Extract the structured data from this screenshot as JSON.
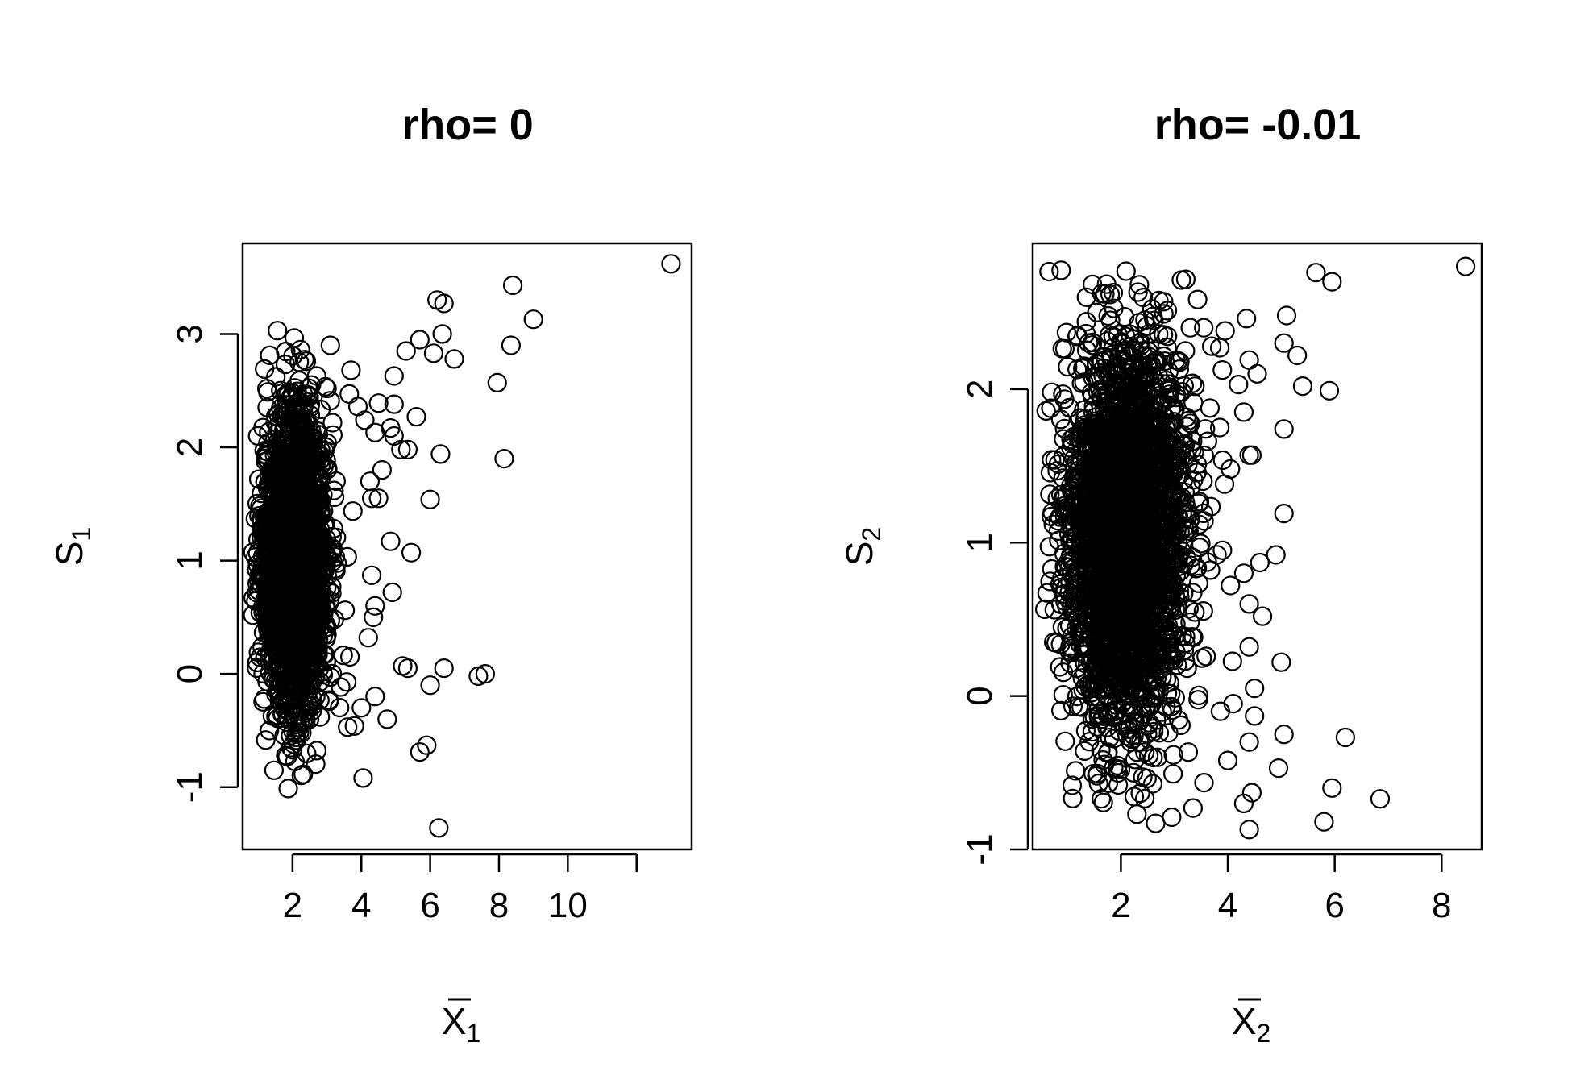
{
  "chart_data": [
    {
      "type": "scatter",
      "title": "rho= 0",
      "xlabel": "X̄1",
      "ylabel": "S1",
      "xlabel_base": "X",
      "xlabel_sub": "1",
      "ylabel_base": "S",
      "ylabel_sub": "1",
      "xlim": [
        0.55,
        13.6
      ],
      "ylim": [
        -1.55,
        3.8
      ],
      "xticks": [
        2,
        4,
        6,
        8,
        10,
        12
      ],
      "xtick_labels": [
        "2",
        "4",
        "6",
        "8",
        "10",
        ""
      ],
      "yticks": [
        -1,
        0,
        1,
        2,
        3
      ],
      "ytick_labels": [
        "-1",
        "0",
        "1",
        "2",
        "3"
      ],
      "grid": false,
      "bulk": {
        "description": "dense elliptical cloud",
        "x_center": 2.05,
        "x_spread": 0.45,
        "y_center": 1.0,
        "y_spread": 0.62,
        "count": 2600
      },
      "points": [
        {
          "x": 13.0,
          "y": 3.62
        },
        {
          "x": 8.4,
          "y": 3.43
        },
        {
          "x": 6.2,
          "y": 3.3
        },
        {
          "x": 6.4,
          "y": 3.27
        },
        {
          "x": 9.0,
          "y": 3.13
        },
        {
          "x": 6.35,
          "y": 3.0
        },
        {
          "x": 5.7,
          "y": 2.95
        },
        {
          "x": 8.35,
          "y": 2.9
        },
        {
          "x": 3.1,
          "y": 2.9
        },
        {
          "x": 5.3,
          "y": 2.85
        },
        {
          "x": 6.1,
          "y": 2.83
        },
        {
          "x": 6.7,
          "y": 2.78
        },
        {
          "x": 2.4,
          "y": 2.76
        },
        {
          "x": 3.7,
          "y": 2.68
        },
        {
          "x": 2.7,
          "y": 2.63
        },
        {
          "x": 4.95,
          "y": 2.63
        },
        {
          "x": 7.95,
          "y": 2.57
        },
        {
          "x": 2.55,
          "y": 2.55
        },
        {
          "x": 3.0,
          "y": 2.52
        },
        {
          "x": 3.65,
          "y": 2.47
        },
        {
          "x": 4.5,
          "y": 2.39
        },
        {
          "x": 4.95,
          "y": 2.38
        },
        {
          "x": 3.9,
          "y": 2.36
        },
        {
          "x": 5.6,
          "y": 2.27
        },
        {
          "x": 4.1,
          "y": 2.24
        },
        {
          "x": 4.85,
          "y": 2.17
        },
        {
          "x": 4.4,
          "y": 2.13
        },
        {
          "x": 4.95,
          "y": 2.1
        },
        {
          "x": 5.15,
          "y": 1.98
        },
        {
          "x": 5.35,
          "y": 1.98
        },
        {
          "x": 6.3,
          "y": 1.94
        },
        {
          "x": 8.15,
          "y": 1.9
        },
        {
          "x": 4.6,
          "y": 1.8
        },
        {
          "x": 4.25,
          "y": 1.7
        },
        {
          "x": 4.3,
          "y": 1.55
        },
        {
          "x": 6.0,
          "y": 1.54
        },
        {
          "x": 4.5,
          "y": 1.55
        },
        {
          "x": 4.85,
          "y": 1.17
        },
        {
          "x": 5.45,
          "y": 1.07
        },
        {
          "x": 4.3,
          "y": 0.87
        },
        {
          "x": 4.9,
          "y": 0.72
        },
        {
          "x": 4.4,
          "y": 0.6
        },
        {
          "x": 4.35,
          "y": 0.5
        },
        {
          "x": 4.2,
          "y": 0.32
        },
        {
          "x": 5.2,
          "y": 0.07
        },
        {
          "x": 5.35,
          "y": 0.05
        },
        {
          "x": 6.4,
          "y": 0.05
        },
        {
          "x": 7.6,
          "y": 0.0
        },
        {
          "x": 7.4,
          "y": -0.02
        },
        {
          "x": 6.0,
          "y": -0.1
        },
        {
          "x": 4.4,
          "y": -0.2
        },
        {
          "x": 4.0,
          "y": -0.3
        },
        {
          "x": 4.75,
          "y": -0.4
        },
        {
          "x": 3.6,
          "y": -0.47
        },
        {
          "x": 3.8,
          "y": -0.46
        },
        {
          "x": 5.9,
          "y": -0.63
        },
        {
          "x": 5.7,
          "y": -0.69
        },
        {
          "x": 2.0,
          "y": -0.67
        },
        {
          "x": 1.85,
          "y": -0.73
        },
        {
          "x": 4.05,
          "y": -0.92
        },
        {
          "x": 6.25,
          "y": -1.36
        }
      ]
    },
    {
      "type": "scatter",
      "title": "rho= -0.01",
      "xlabel": "X̄2",
      "ylabel": "S2",
      "xlabel_base": "X",
      "xlabel_sub": "2",
      "ylabel_base": "S",
      "ylabel_sub": "2",
      "xlim": [
        0.35,
        8.75
      ],
      "ylim": [
        -1.0,
        2.95
      ],
      "xticks": [
        2,
        4,
        6,
        8
      ],
      "xtick_labels": [
        "2",
        "4",
        "6",
        "8"
      ],
      "yticks": [
        -1,
        0,
        1,
        2
      ],
      "ytick_labels": [
        "-1",
        "0",
        "1",
        "2"
      ],
      "grid": false,
      "bulk": {
        "description": "dense elliptical cloud",
        "x_center": 2.1,
        "x_spread": 0.55,
        "y_center": 1.05,
        "y_spread": 0.6,
        "count": 3000
      },
      "points": [
        {
          "x": 8.45,
          "y": 2.8
        },
        {
          "x": 5.65,
          "y": 2.76
        },
        {
          "x": 5.95,
          "y": 2.7
        },
        {
          "x": 1.7,
          "y": 2.62
        },
        {
          "x": 2.8,
          "y": 2.57
        },
        {
          "x": 1.55,
          "y": 2.5
        },
        {
          "x": 2.45,
          "y": 2.45
        },
        {
          "x": 5.1,
          "y": 2.48
        },
        {
          "x": 4.35,
          "y": 2.46
        },
        {
          "x": 3.3,
          "y": 2.4
        },
        {
          "x": 3.55,
          "y": 2.4
        },
        {
          "x": 3.95,
          "y": 2.38
        },
        {
          "x": 5.05,
          "y": 2.3
        },
        {
          "x": 3.7,
          "y": 2.28
        },
        {
          "x": 3.85,
          "y": 2.27
        },
        {
          "x": 5.3,
          "y": 2.22
        },
        {
          "x": 4.4,
          "y": 2.19
        },
        {
          "x": 4.55,
          "y": 2.1
        },
        {
          "x": 4.2,
          "y": 2.03
        },
        {
          "x": 5.4,
          "y": 2.02
        },
        {
          "x": 5.9,
          "y": 1.99
        },
        {
          "x": 4.3,
          "y": 1.85
        },
        {
          "x": 3.85,
          "y": 1.75
        },
        {
          "x": 5.05,
          "y": 1.74
        },
        {
          "x": 4.4,
          "y": 1.57
        },
        {
          "x": 4.45,
          "y": 1.57
        },
        {
          "x": 4.05,
          "y": 1.48
        },
        {
          "x": 5.05,
          "y": 1.19
        },
        {
          "x": 3.9,
          "y": 0.95
        },
        {
          "x": 4.9,
          "y": 0.92
        },
        {
          "x": 4.6,
          "y": 0.87
        },
        {
          "x": 4.3,
          "y": 0.8
        },
        {
          "x": 4.05,
          "y": 0.72
        },
        {
          "x": 4.4,
          "y": 0.6
        },
        {
          "x": 4.65,
          "y": 0.52
        },
        {
          "x": 4.4,
          "y": 0.32
        },
        {
          "x": 5.0,
          "y": 0.22
        },
        {
          "x": 4.5,
          "y": 0.05
        },
        {
          "x": 4.1,
          "y": -0.05
        },
        {
          "x": 4.5,
          "y": -0.13
        },
        {
          "x": 5.05,
          "y": -0.25
        },
        {
          "x": 6.2,
          "y": -0.27
        },
        {
          "x": 4.4,
          "y": -0.3
        },
        {
          "x": 4.0,
          "y": -0.42
        },
        {
          "x": 4.95,
          "y": -0.47
        },
        {
          "x": 5.95,
          "y": -0.6
        },
        {
          "x": 4.45,
          "y": -0.63
        },
        {
          "x": 6.85,
          "y": -0.67
        },
        {
          "x": 4.3,
          "y": -0.7
        },
        {
          "x": 3.35,
          "y": -0.73
        },
        {
          "x": 2.3,
          "y": -0.77
        },
        {
          "x": 2.95,
          "y": -0.79
        },
        {
          "x": 2.65,
          "y": -0.83
        },
        {
          "x": 5.8,
          "y": -0.82
        },
        {
          "x": 4.4,
          "y": -0.87
        },
        {
          "x": 1.55,
          "y": -0.52
        },
        {
          "x": 1.95,
          "y": -0.58
        }
      ]
    }
  ]
}
